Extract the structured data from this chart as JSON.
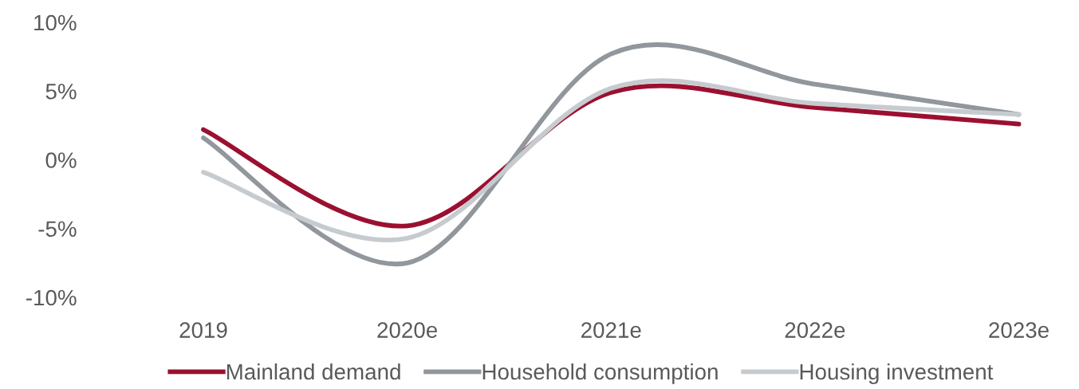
{
  "chart_data": {
    "type": "line",
    "categories": [
      "2019",
      "2020e",
      "2021e",
      "2022e",
      "2023e"
    ],
    "series": [
      {
        "name": "Mainland demand",
        "color": "#9b1030",
        "values": [
          2.2,
          -4.8,
          4.9,
          3.8,
          2.6
        ]
      },
      {
        "name": "Household consumption",
        "color": "#91979c",
        "values": [
          1.6,
          -7.5,
          7.7,
          5.5,
          3.3
        ]
      },
      {
        "name": "Housing investment",
        "color": "#c6cbcf",
        "values": [
          -0.9,
          -5.7,
          5.2,
          4.1,
          3.3
        ]
      }
    ],
    "ylim": [
      -10,
      10
    ],
    "yticks": [
      {
        "value": -10,
        "label": "-10%"
      },
      {
        "value": -5,
        "label": "-5%"
      },
      {
        "value": 0,
        "label": "0%"
      },
      {
        "value": 5,
        "label": "5%"
      },
      {
        "value": 10,
        "label": "10%"
      }
    ],
    "grid": false,
    "legend": "bottom",
    "marker": "none",
    "line_style": "solid"
  }
}
